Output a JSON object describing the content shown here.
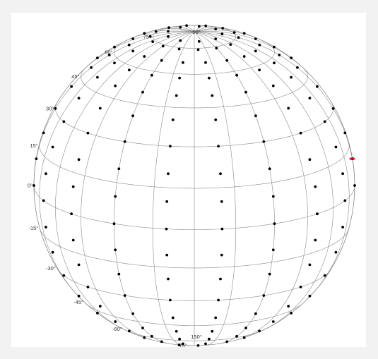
{
  "colors": {
    "page": "#f2f2f2",
    "panel": "#ffffff",
    "grid": "#8a8a8a",
    "points": "#000000",
    "marker": "#e8112d"
  },
  "globe": {
    "projection": "orthographic",
    "graticule_step_deg": 15,
    "lat_labels": [
      "75°",
      "60°",
      "45°",
      "30°",
      "15°",
      "0°",
      "-15°",
      "-30°",
      "-45°",
      "-60°",
      "-75°"
    ],
    "pole_labels": [
      "90°",
      "150°"
    ]
  },
  "chart_data": {
    "type": "scatter",
    "series": [
      {
        "values": [
          [
            0,
            80
          ],
          [
            40,
            80
          ],
          [
            80,
            80
          ],
          [
            120,
            80
          ],
          [
            160,
            80
          ],
          [
            200,
            80
          ],
          [
            240,
            80
          ],
          [
            280,
            80
          ],
          [
            320,
            80
          ],
          [
            0,
            74
          ],
          [
            25,
            74
          ],
          [
            50,
            74
          ],
          [
            75,
            74
          ],
          [
            100,
            74
          ],
          [
            125,
            74
          ],
          [
            150,
            74
          ],
          [
            175,
            74
          ],
          [
            200,
            74
          ],
          [
            225,
            74
          ],
          [
            250,
            74
          ],
          [
            275,
            74
          ],
          [
            300,
            74
          ],
          [
            325,
            74
          ],
          [
            0,
            66
          ],
          [
            20,
            66
          ],
          [
            40,
            66
          ],
          [
            60,
            66
          ],
          [
            80,
            66
          ],
          [
            100,
            66
          ],
          [
            120,
            66
          ],
          [
            140,
            66
          ],
          [
            160,
            66
          ],
          [
            180,
            66
          ],
          [
            200,
            66
          ],
          [
            220,
            66
          ],
          [
            240,
            66
          ],
          [
            260,
            66
          ],
          [
            280,
            66
          ],
          [
            300,
            66
          ],
          [
            320,
            66
          ],
          [
            340,
            66
          ],
          [
            0,
            58
          ],
          [
            20,
            58
          ],
          [
            40,
            58
          ],
          [
            60,
            58
          ],
          [
            80,
            58
          ],
          [
            100,
            58
          ],
          [
            120,
            58
          ],
          [
            140,
            58
          ],
          [
            160,
            58
          ],
          [
            180,
            58
          ],
          [
            200,
            58
          ],
          [
            220,
            58
          ],
          [
            240,
            58
          ],
          [
            260,
            58
          ],
          [
            280,
            58
          ],
          [
            300,
            58
          ],
          [
            320,
            58
          ],
          [
            340,
            58
          ],
          [
            0,
            50
          ],
          [
            20,
            50
          ],
          [
            40,
            50
          ],
          [
            60,
            50
          ],
          [
            80,
            50
          ],
          [
            100,
            50
          ],
          [
            120,
            50
          ],
          [
            140,
            50
          ],
          [
            160,
            50
          ],
          [
            180,
            50
          ],
          [
            200,
            50
          ],
          [
            220,
            50
          ],
          [
            240,
            50
          ],
          [
            260,
            50
          ],
          [
            280,
            50
          ],
          [
            300,
            50
          ],
          [
            320,
            50
          ],
          [
            340,
            50
          ],
          [
            0,
            40
          ],
          [
            20,
            40
          ],
          [
            40,
            40
          ],
          [
            60,
            40
          ],
          [
            80,
            40
          ],
          [
            100,
            40
          ],
          [
            120,
            40
          ],
          [
            140,
            40
          ],
          [
            160,
            40
          ],
          [
            180,
            40
          ],
          [
            200,
            40
          ],
          [
            220,
            40
          ],
          [
            240,
            40
          ],
          [
            260,
            40
          ],
          [
            280,
            40
          ],
          [
            300,
            40
          ],
          [
            320,
            40
          ],
          [
            340,
            40
          ],
          [
            0,
            30
          ],
          [
            20,
            30
          ],
          [
            40,
            30
          ],
          [
            60,
            30
          ],
          [
            80,
            30
          ],
          [
            100,
            30
          ],
          [
            120,
            30
          ],
          [
            140,
            30
          ],
          [
            160,
            30
          ],
          [
            180,
            30
          ],
          [
            200,
            30
          ],
          [
            220,
            30
          ],
          [
            240,
            30
          ],
          [
            260,
            30
          ],
          [
            280,
            30
          ],
          [
            300,
            30
          ],
          [
            320,
            30
          ],
          [
            340,
            30
          ],
          [
            0,
            20
          ],
          [
            20,
            20
          ],
          [
            40,
            20
          ],
          [
            60,
            20
          ],
          [
            80,
            20
          ],
          [
            100,
            20
          ],
          [
            120,
            20
          ],
          [
            140,
            20
          ],
          [
            160,
            20
          ],
          [
            180,
            20
          ],
          [
            200,
            20
          ],
          [
            220,
            20
          ],
          [
            240,
            20
          ],
          [
            260,
            20
          ],
          [
            280,
            20
          ],
          [
            300,
            20
          ],
          [
            320,
            20
          ],
          [
            340,
            20
          ],
          [
            0,
            10
          ],
          [
            20,
            10
          ],
          [
            40,
            10
          ],
          [
            60,
            10
          ],
          [
            80,
            10
          ],
          [
            100,
            10
          ],
          [
            120,
            10
          ],
          [
            140,
            10
          ],
          [
            160,
            10
          ],
          [
            180,
            10
          ],
          [
            200,
            10
          ],
          [
            220,
            10
          ],
          [
            240,
            10
          ],
          [
            260,
            10
          ],
          [
            280,
            10
          ],
          [
            300,
            10
          ],
          [
            320,
            10
          ],
          [
            340,
            10
          ],
          [
            0,
            0
          ],
          [
            20,
            0
          ],
          [
            40,
            0
          ],
          [
            60,
            0
          ],
          [
            80,
            0
          ],
          [
            100,
            0
          ],
          [
            120,
            0
          ],
          [
            140,
            0
          ],
          [
            160,
            0
          ],
          [
            180,
            0
          ],
          [
            200,
            0
          ],
          [
            220,
            0
          ],
          [
            240,
            0
          ],
          [
            260,
            0
          ],
          [
            280,
            0
          ],
          [
            300,
            0
          ],
          [
            320,
            0
          ],
          [
            340,
            0
          ],
          [
            0,
            -10
          ],
          [
            20,
            -10
          ],
          [
            40,
            -10
          ],
          [
            60,
            -10
          ],
          [
            80,
            -10
          ],
          [
            100,
            -10
          ],
          [
            120,
            -10
          ],
          [
            140,
            -10
          ],
          [
            160,
            -10
          ],
          [
            180,
            -10
          ],
          [
            200,
            -10
          ],
          [
            220,
            -10
          ],
          [
            240,
            -10
          ],
          [
            260,
            -10
          ],
          [
            280,
            -10
          ],
          [
            300,
            -10
          ],
          [
            320,
            -10
          ],
          [
            340,
            -10
          ],
          [
            0,
            -20
          ],
          [
            20,
            -20
          ],
          [
            40,
            -20
          ],
          [
            60,
            -20
          ],
          [
            80,
            -20
          ],
          [
            100,
            -20
          ],
          [
            120,
            -20
          ],
          [
            140,
            -20
          ],
          [
            160,
            -20
          ],
          [
            180,
            -20
          ],
          [
            200,
            -20
          ],
          [
            220,
            -20
          ],
          [
            240,
            -20
          ],
          [
            260,
            -20
          ],
          [
            280,
            -20
          ],
          [
            300,
            -20
          ],
          [
            320,
            -20
          ],
          [
            340,
            -20
          ],
          [
            0,
            -30
          ],
          [
            20,
            -30
          ],
          [
            40,
            -30
          ],
          [
            60,
            -30
          ],
          [
            80,
            -30
          ],
          [
            100,
            -30
          ],
          [
            120,
            -30
          ],
          [
            140,
            -30
          ],
          [
            160,
            -30
          ],
          [
            180,
            -30
          ],
          [
            200,
            -30
          ],
          [
            220,
            -30
          ],
          [
            240,
            -30
          ],
          [
            260,
            -30
          ],
          [
            280,
            -30
          ],
          [
            300,
            -30
          ],
          [
            320,
            -30
          ],
          [
            340,
            -30
          ],
          [
            0,
            -40
          ],
          [
            20,
            -40
          ],
          [
            40,
            -40
          ],
          [
            60,
            -40
          ],
          [
            80,
            -40
          ],
          [
            100,
            -40
          ],
          [
            120,
            -40
          ],
          [
            140,
            -40
          ],
          [
            160,
            -40
          ],
          [
            180,
            -40
          ],
          [
            200,
            -40
          ],
          [
            220,
            -40
          ],
          [
            240,
            -40
          ],
          [
            260,
            -40
          ],
          [
            280,
            -40
          ],
          [
            300,
            -40
          ],
          [
            320,
            -40
          ],
          [
            340,
            -40
          ],
          [
            0,
            -50
          ],
          [
            20,
            -50
          ],
          [
            40,
            -50
          ],
          [
            60,
            -50
          ],
          [
            80,
            -50
          ],
          [
            100,
            -50
          ],
          [
            120,
            -50
          ],
          [
            140,
            -50
          ],
          [
            160,
            -50
          ],
          [
            180,
            -50
          ],
          [
            200,
            -50
          ],
          [
            220,
            -50
          ],
          [
            240,
            -50
          ],
          [
            260,
            -50
          ],
          [
            280,
            -50
          ],
          [
            300,
            -50
          ],
          [
            320,
            -50
          ],
          [
            340,
            -50
          ],
          [
            0,
            -58
          ],
          [
            20,
            -58
          ],
          [
            40,
            -58
          ],
          [
            60,
            -58
          ],
          [
            80,
            -58
          ],
          [
            100,
            -58
          ],
          [
            120,
            -58
          ],
          [
            140,
            -58
          ],
          [
            160,
            -58
          ],
          [
            180,
            -58
          ],
          [
            200,
            -58
          ],
          [
            220,
            -58
          ],
          [
            240,
            -58
          ],
          [
            260,
            -58
          ],
          [
            280,
            -58
          ],
          [
            300,
            -58
          ],
          [
            320,
            -58
          ],
          [
            340,
            -58
          ],
          [
            0,
            -66
          ],
          [
            20,
            -66
          ],
          [
            40,
            -66
          ],
          [
            60,
            -66
          ],
          [
            80,
            -66
          ],
          [
            100,
            -66
          ],
          [
            120,
            -66
          ],
          [
            140,
            -66
          ],
          [
            160,
            -66
          ],
          [
            180,
            -66
          ],
          [
            200,
            -66
          ],
          [
            220,
            -66
          ],
          [
            240,
            -66
          ],
          [
            260,
            -66
          ],
          [
            280,
            -66
          ],
          [
            300,
            -66
          ],
          [
            320,
            -66
          ],
          [
            340,
            -66
          ],
          [
            0,
            -74
          ],
          [
            25,
            -74
          ],
          [
            50,
            -74
          ],
          [
            75,
            -74
          ],
          [
            100,
            -74
          ],
          [
            125,
            -74
          ],
          [
            150,
            -74
          ],
          [
            175,
            -74
          ],
          [
            200,
            -74
          ],
          [
            225,
            -74
          ],
          [
            250,
            -74
          ],
          [
            275,
            -74
          ],
          [
            300,
            -74
          ],
          [
            325,
            -74
          ],
          [
            0,
            -80
          ],
          [
            40,
            -80
          ],
          [
            80,
            -80
          ],
          [
            120,
            -80
          ],
          [
            160,
            -80
          ],
          [
            200,
            -80
          ],
          [
            240,
            -80
          ],
          [
            280,
            -80
          ],
          [
            320,
            -80
          ]
        ]
      }
    ],
    "marker": [
      0,
      10
    ]
  }
}
